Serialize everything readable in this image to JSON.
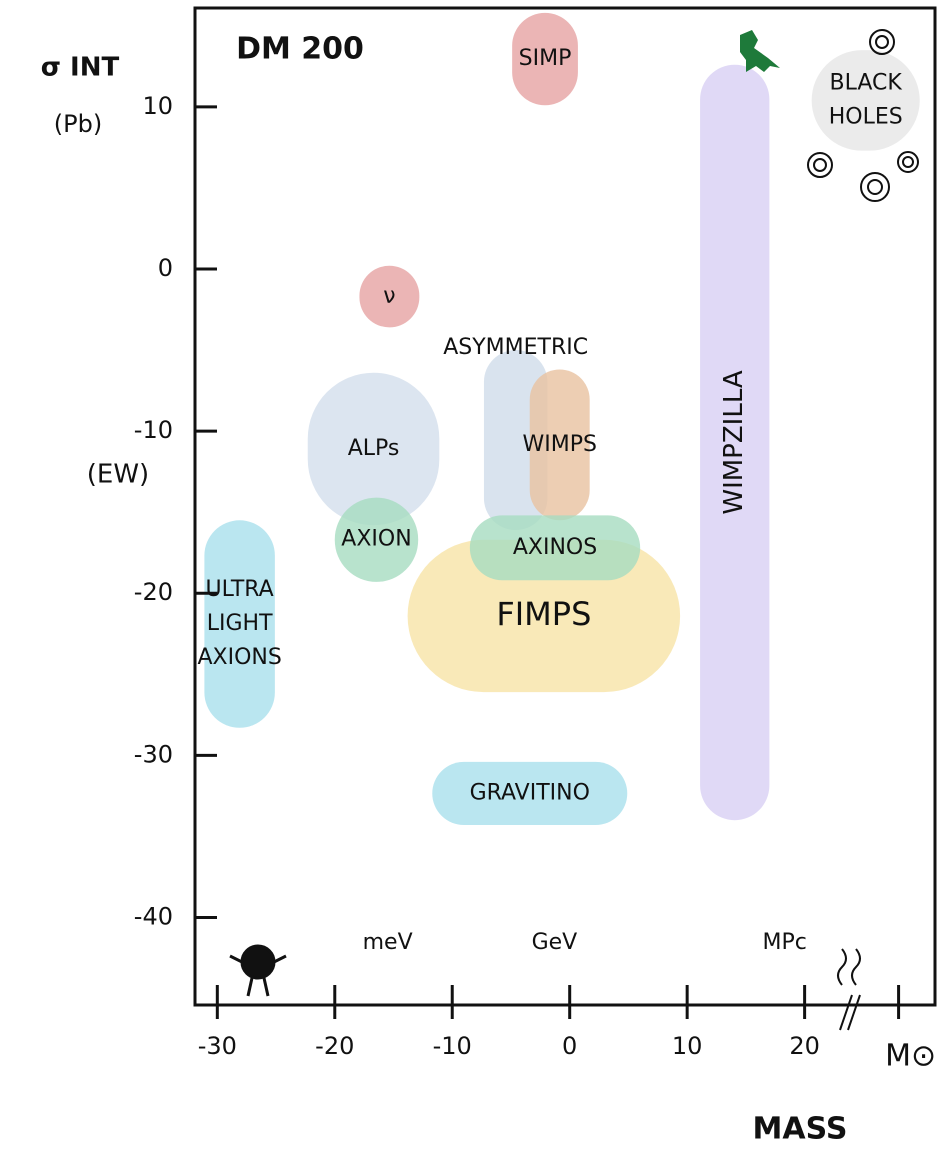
{
  "chart_data": {
    "type": "region",
    "title": "DM 200",
    "ylabel": "σ INT",
    "ylabel_unit": "(Pb)",
    "xlabel": "MASS",
    "xlim": [
      -31.9,
      31.1
    ],
    "ylim": [
      -45.4,
      16.1
    ],
    "xticks": [
      -30,
      -20,
      -10,
      0,
      10,
      20,
      {
        "value": 28,
        "label": "M⊙"
      }
    ],
    "yticks": [
      10,
      0,
      -10,
      -20,
      -30,
      -40
    ],
    "ytick_notes": [
      {
        "value": -10,
        "label": "(EW)"
      }
    ],
    "unit_marks": [
      {
        "value": -15.5,
        "label": "meV"
      },
      {
        "value": -1.3,
        "label": "GeV"
      },
      {
        "value": 18.3,
        "label": "MPc"
      }
    ],
    "regions": [
      {
        "label": [
          "SIMP"
        ],
        "color": "#e6a3a3",
        "x": [
          -4.9,
          0.7
        ],
        "y": [
          10.1,
          15.8
        ]
      },
      {
        "label": [
          "ν"
        ],
        "color": "#e6a3a3",
        "x": [
          -17.9,
          -12.8
        ],
        "y": [
          -3.6,
          0.2
        ]
      },
      {
        "label": [
          "ALPs"
        ],
        "color": "#d3dfec",
        "x": [
          -22.3,
          -11.1
        ],
        "y": [
          -15.8,
          -6.4
        ]
      },
      {
        "label": [
          "ASYMMETRIC"
        ],
        "color": "#cfdcea",
        "x": [
          -7.3,
          -1.9
        ],
        "y": [
          -16.1,
          -5.0
        ]
      },
      {
        "label": [
          "WIMPS"
        ],
        "color": "#e8c2a0",
        "x": [
          -3.4,
          1.7
        ],
        "y": [
          -15.5,
          -6.2
        ]
      },
      {
        "label": [
          "AXION"
        ],
        "color": "#a6dcc0",
        "x": [
          -20.0,
          -12.9
        ],
        "y": [
          -19.3,
          -14.1
        ]
      },
      {
        "label": [
          "FIMPS"
        ],
        "color": "#f7e4a6",
        "x": [
          -13.8,
          9.4
        ],
        "y": [
          -26.1,
          -16.7
        ]
      },
      {
        "label": [
          "AXINOS"
        ],
        "color": "#a6dcc0",
        "x": [
          -8.5,
          6.0
        ],
        "y": [
          -19.2,
          -15.2
        ]
      },
      {
        "label": [
          "ULTRA",
          "LIGHT",
          "AXIONS"
        ],
        "color": "#a9e0ec",
        "x": [
          -31.1,
          -25.1
        ],
        "y": [
          -28.3,
          -15.5
        ]
      },
      {
        "label": [
          "GRAVITINO"
        ],
        "color": "#a9e0ec",
        "x": [
          -11.7,
          4.9
        ],
        "y": [
          -34.3,
          -30.4
        ]
      },
      {
        "label": [
          "WIMPZILLA"
        ],
        "color": "#d8d0f4",
        "x": [
          11.1,
          17.0
        ],
        "y": [
          -34.0,
          12.6
        ]
      },
      {
        "label": [
          "BLACK",
          "HOLES"
        ],
        "color": "#e6e6e6",
        "x": [
          20.6,
          29.8
        ],
        "y": [
          7.3,
          13.5
        ]
      }
    ]
  }
}
